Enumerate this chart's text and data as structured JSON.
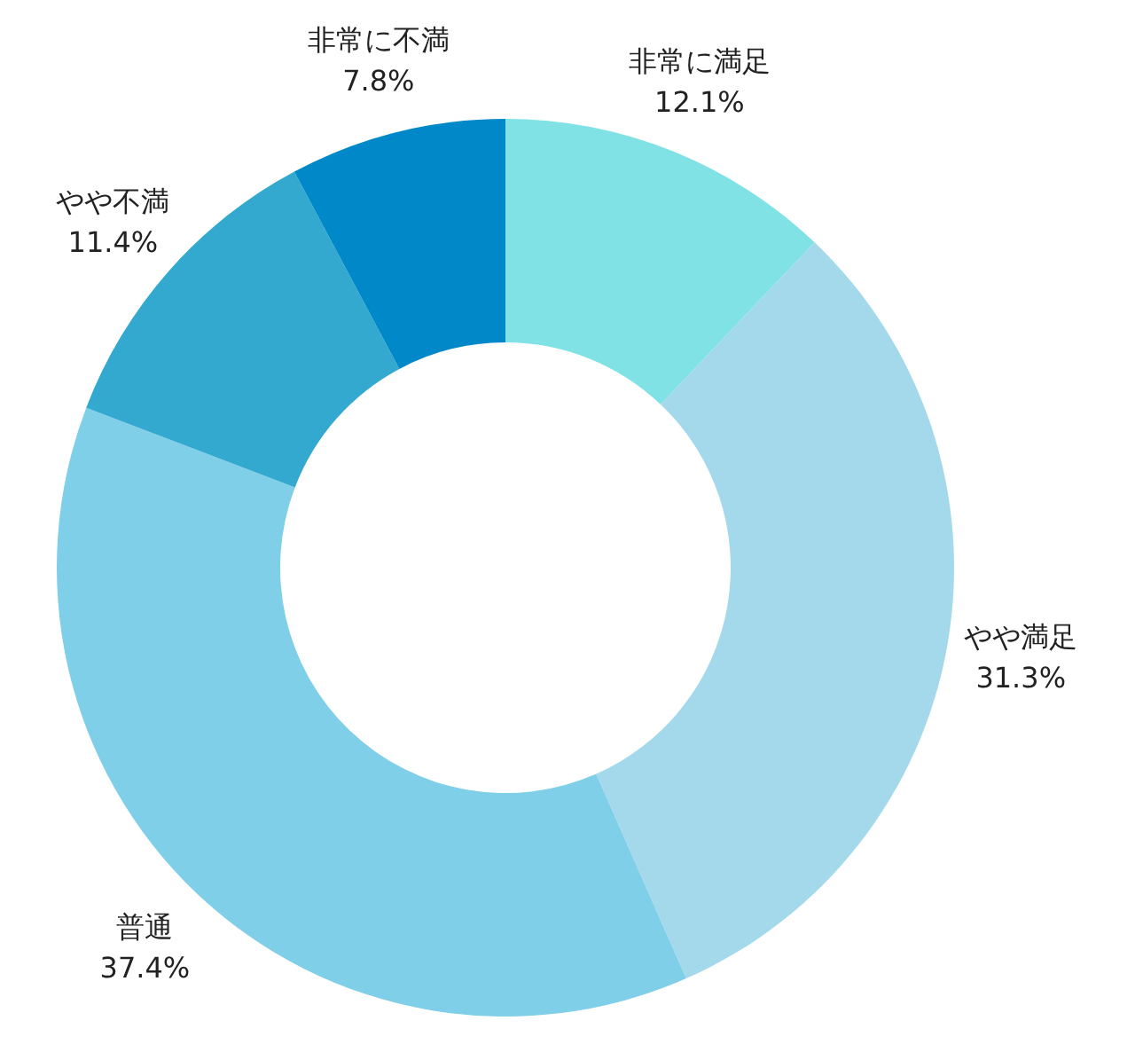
{
  "chart_data": {
    "type": "donut",
    "categories": [
      "非常に満足",
      "やや満足",
      "普通",
      "やや不満",
      "非常に不満"
    ],
    "values": [
      12.1,
      31.3,
      37.4,
      11.4,
      7.8
    ],
    "value_labels": [
      "12.1%",
      "31.3%",
      "37.4%",
      "11.4%",
      "7.8%"
    ],
    "colors": [
      "#80e2e5",
      "#a4d9eb",
      "#80cfe8",
      "#33a9cf",
      "#0088c8"
    ]
  }
}
